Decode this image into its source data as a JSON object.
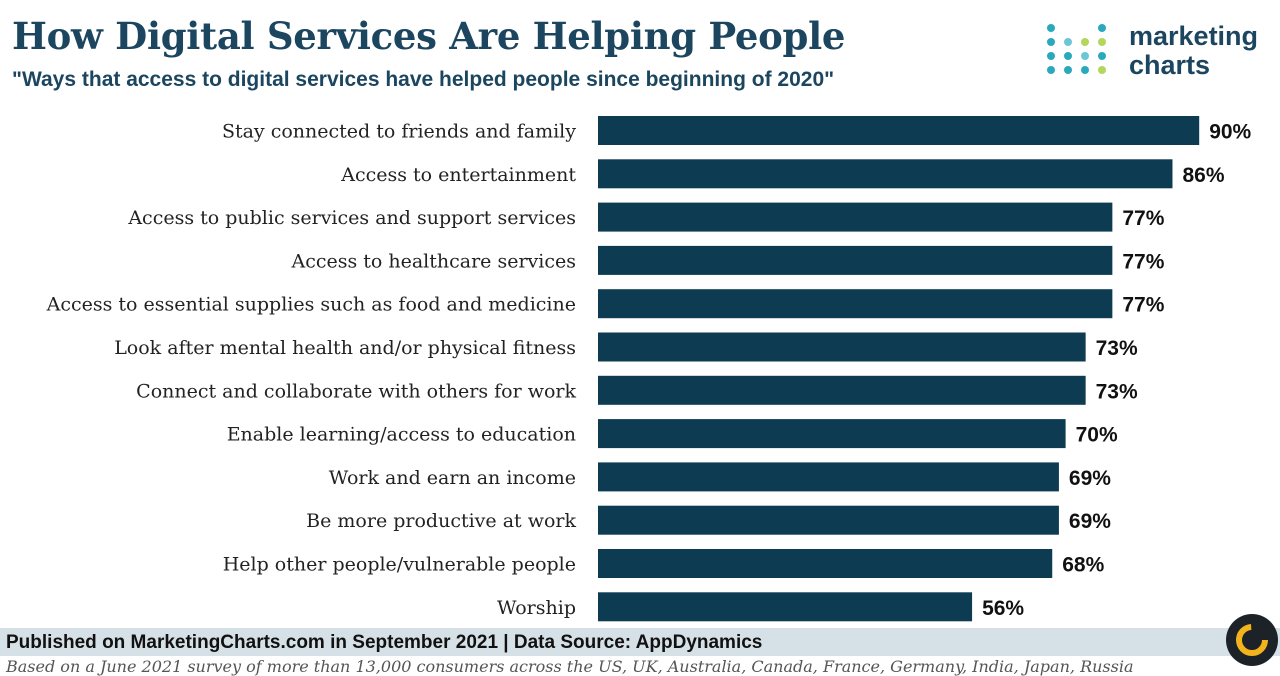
{
  "header": {
    "title": "How Digital Services Are Helping People",
    "subtitle": "\"Ways that access to digital services have helped people since beginning of 2020\""
  },
  "logo": {
    "line1": "marketing",
    "line2": "charts"
  },
  "footer": {
    "published": "Published on MarketingCharts.com in September 2021 | Data Source: AppDynamics",
    "note": "Based on a June 2021 survey of more than 13,000 consumers across the US, UK, Australia, Canada, France, Germany, India, Japan, Russia"
  },
  "colors": {
    "bar": "#0d3b52",
    "title": "#1c4660",
    "footer_band": "#d6e1e7"
  },
  "chart_data": {
    "type": "bar",
    "orientation": "horizontal",
    "title": "How Digital Services Are Helping People",
    "subtitle": "\"Ways that access to digital services have helped people since beginning of 2020\"",
    "xlabel": "",
    "ylabel": "",
    "xlim": [
      0,
      100
    ],
    "grid": false,
    "value_suffix": "%",
    "categories": [
      "Stay connected to friends and family",
      "Access to entertainment",
      "Access to public services and support services",
      "Access to healthcare services",
      "Access to essential supplies such as food and medicine",
      "Look after mental health and/or physical fitness",
      "Connect and collaborate with others for work",
      "Enable learning/access to education",
      "Work and earn an income",
      "Be more productive at work",
      "Help other people/vulnerable people",
      "Worship"
    ],
    "values": [
      90,
      86,
      77,
      77,
      77,
      73,
      73,
      70,
      69,
      69,
      68,
      56
    ]
  }
}
